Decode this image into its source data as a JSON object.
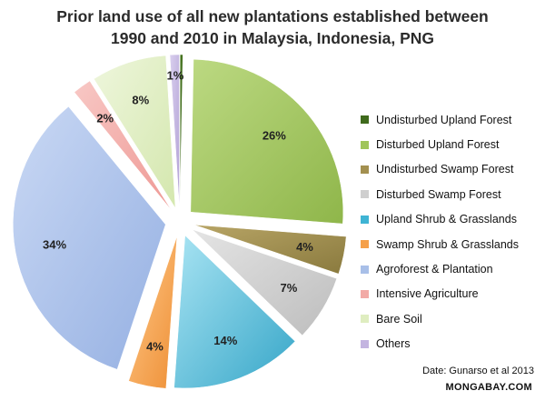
{
  "chart_data": {
    "type": "pie",
    "title_line1": "Prior land use of all new plantations established between",
    "title_line2": "1990 and 2010 in Malaysia, Indonesia, PNG",
    "legend_position": "right",
    "slices": [
      {
        "label": "Undisturbed Upland Forest",
        "value": 0.3,
        "data_label": "",
        "color": "#3f6a1c",
        "gradient": [
          "#4e7f25",
          "#2f5212"
        ]
      },
      {
        "label": "Disturbed Upland Forest",
        "value": 26,
        "data_label": "26%",
        "color": "#9fc55a",
        "gradient": [
          "#bcd982",
          "#8fb64a"
        ]
      },
      {
        "label": "Undisturbed Swamp Forest",
        "value": 4,
        "data_label": "4%",
        "color": "#a39050",
        "gradient": [
          "#b8a566",
          "#8a7a3e"
        ]
      },
      {
        "label": "Disturbed Swamp Forest",
        "value": 7,
        "data_label": "7%",
        "color": "#cfcfcf",
        "gradient": [
          "#e4e4e4",
          "#bdbdbd"
        ]
      },
      {
        "label": "Upland Shrub & Grasslands",
        "value": 14,
        "data_label": "14%",
        "color": "#3fb4d4",
        "gradient": [
          "#a9e4f3",
          "#36a6c8"
        ]
      },
      {
        "label": "Swamp Shrub & Grasslands",
        "value": 4,
        "data_label": "4%",
        "color": "#f5a04a",
        "gradient": [
          "#ffc98a",
          "#ee8f35"
        ]
      },
      {
        "label": "Agroforest & Plantation",
        "value": 34,
        "data_label": "34%",
        "color": "#a8bfe8",
        "gradient": [
          "#c9d8f4",
          "#95b0e2"
        ]
      },
      {
        "label": "Intensive Agriculture",
        "value": 2,
        "data_label": "2%",
        "color": "#f2aaa6",
        "gradient": [
          "#f8c8c5",
          "#ee9995"
        ]
      },
      {
        "label": "Bare Soil",
        "value": 8,
        "data_label": "8%",
        "color": "#dfedc0",
        "gradient": [
          "#eef6dc",
          "#d4e7ae"
        ]
      },
      {
        "label": "Others",
        "value": 1,
        "data_label": "1%",
        "color": "#c3b4e0",
        "gradient": [
          "#d9cfee",
          "#b3a2d6"
        ]
      }
    ]
  },
  "footer": {
    "source": "Date: Gunarso et al 2013",
    "brand": "MONGABAY.COM"
  }
}
